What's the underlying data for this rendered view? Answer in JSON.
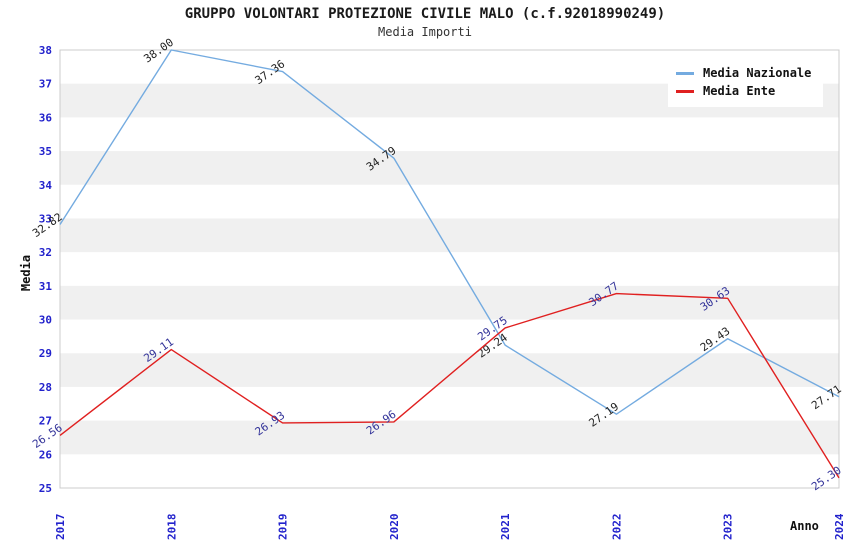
{
  "chart_data": {
    "type": "line",
    "title": "GRUPPO VOLONTARI PROTEZIONE CIVILE MALO (c.f.92018990249)",
    "subtitle": "Media Importi",
    "xlabel": "Anno",
    "ylabel": "Media",
    "categories": [
      "2017",
      "2018",
      "2019",
      "2020",
      "2021",
      "2022",
      "2023",
      "2024"
    ],
    "ylim": [
      25,
      38
    ],
    "ytick_step": 1,
    "grid": "alternating-horizontal-bands",
    "legend_position": "top-right",
    "series": [
      {
        "name": "Media Nazionale",
        "color": "#74ABE0",
        "label_color": "#222222",
        "values": [
          32.82,
          38.0,
          37.36,
          34.79,
          29.24,
          27.19,
          29.43,
          27.71
        ]
      },
      {
        "name": "Media Ente",
        "color": "#E02020",
        "label_color": "#333399",
        "values": [
          26.56,
          29.11,
          26.93,
          26.96,
          29.75,
          30.77,
          30.63,
          25.3
        ]
      }
    ],
    "styles": {
      "band_color": "#F0F0F0",
      "plot_border_color": "#CCCCCC",
      "tick_label_color": "#2222CC",
      "background_color": "#FFFFFF"
    }
  }
}
